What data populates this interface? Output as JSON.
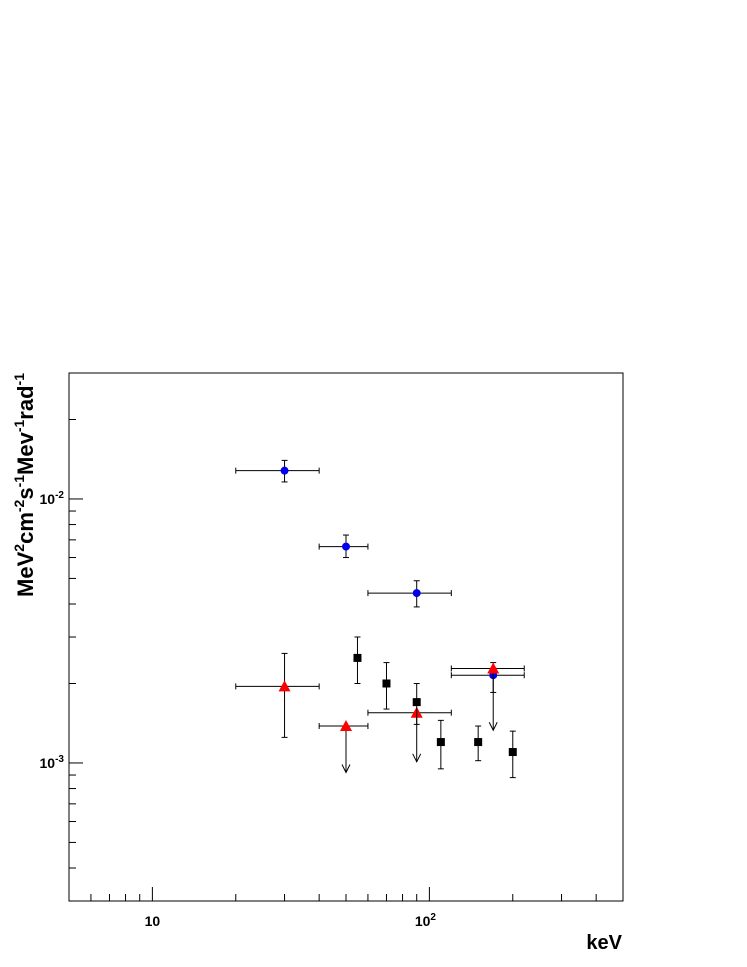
{
  "chart_data": {
    "type": "scatter",
    "xlabel": "keV",
    "ylabel_parts": [
      {
        "t": "MeV",
        "sup": false
      },
      {
        "t": "2",
        "sup": true
      },
      {
        "t": "cm",
        "sup": false
      },
      {
        "t": "-2",
        "sup": true
      },
      {
        "t": "s",
        "sup": false
      },
      {
        "t": "-1",
        "sup": true
      },
      {
        "t": "Mev",
        "sup": false
      },
      {
        "t": "-1",
        "sup": true
      },
      {
        "t": "rad",
        "sup": false
      },
      {
        "t": "-1",
        "sup": true
      }
    ],
    "x_scale": "log",
    "y_scale": "log",
    "xlim": [
      5,
      500
    ],
    "ylim": [
      0.0003,
      0.03
    ],
    "x_ticks": [
      {
        "value": 10,
        "label": "10",
        "sup": ""
      },
      {
        "value": 100,
        "label": "10",
        "sup": "2"
      }
    ],
    "y_ticks": [
      {
        "value": 0.001,
        "label": "10",
        "sup": "-3"
      },
      {
        "value": 0.01,
        "label": "10",
        "sup": "-2"
      }
    ],
    "grid": false,
    "series": [
      {
        "marker": "circle",
        "color": "#0000ee",
        "points": [
          {
            "x": 30,
            "y": 0.0128,
            "xlo": 20,
            "xhi": 40,
            "ylo": 0.0116,
            "yhi": 0.014
          },
          {
            "x": 50,
            "y": 0.0066,
            "xlo": 40,
            "xhi": 60,
            "ylo": 0.006,
            "yhi": 0.0073
          },
          {
            "x": 90,
            "y": 0.0044,
            "xlo": 60,
            "xhi": 120,
            "ylo": 0.0039,
            "yhi": 0.0049
          },
          {
            "x": 170,
            "y": 0.00215,
            "xlo": 120,
            "xhi": 220,
            "ylo": 0.00185,
            "yhi": 0.0024
          }
        ]
      },
      {
        "marker": "triangle",
        "color": "#ff0000",
        "points": [
          {
            "x": 30,
            "y": 0.00195,
            "xlo": 20,
            "xhi": 40,
            "ylo": 0.00125,
            "yhi": 0.0026
          },
          {
            "x": 50,
            "y": 0.00138,
            "xlo": 40,
            "xhi": 60,
            "upper_limit": true,
            "arrow_to": 0.00092
          },
          {
            "x": 90,
            "y": 0.00155,
            "xlo": 60,
            "xhi": 120,
            "upper_limit": true,
            "arrow_to": 0.00101
          },
          {
            "x": 170,
            "y": 0.00228,
            "xlo": 120,
            "xhi": 220,
            "upper_limit": true,
            "arrow_to": 0.00133
          }
        ]
      },
      {
        "marker": "square",
        "color": "#000000",
        "points": [
          {
            "x": 55,
            "y": 0.0025,
            "ylo": 0.002,
            "yhi": 0.003
          },
          {
            "x": 70,
            "y": 0.002,
            "ylo": 0.0016,
            "yhi": 0.0024
          },
          {
            "x": 90,
            "y": 0.0017,
            "ylo": 0.0014,
            "yhi": 0.002
          },
          {
            "x": 110,
            "y": 0.0012,
            "ylo": 0.00095,
            "yhi": 0.00145
          },
          {
            "x": 150,
            "y": 0.0012,
            "ylo": 0.00102,
            "yhi": 0.00138
          },
          {
            "x": 200,
            "y": 0.0011,
            "ylo": 0.00088,
            "yhi": 0.00132
          }
        ]
      }
    ]
  }
}
